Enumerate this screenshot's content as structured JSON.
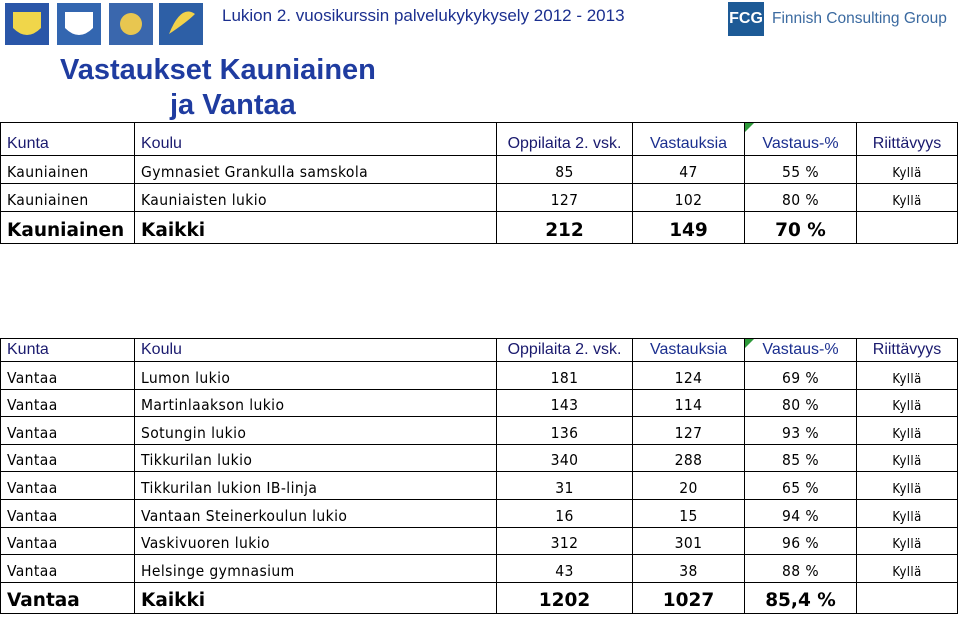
{
  "header": {
    "title": "Lukion 2. vuosikurssin palvelukykykysely 2012 - 2013",
    "logo_text": "FCG",
    "company": "Finnish Consulting Group"
  },
  "heading": [
    "Vastaukset Kauniainen",
    "ja Vantaa"
  ],
  "tables": [
    {
      "columns": [
        "Kunta",
        "Koulu",
        "Oppilaita 2. vsk.",
        "Vastauksia",
        "Vastaus-%",
        "Riittävyys"
      ],
      "rows": [
        [
          "Kauniainen",
          "Gymnasiet Grankulla samskola",
          "85",
          "47",
          "55 %",
          "Kyllä"
        ],
        [
          "Kauniainen",
          "Kauniaisten lukio",
          "127",
          "102",
          "80 %",
          "Kyllä"
        ]
      ],
      "total": [
        "Kauniainen",
        "Kaikki",
        "212",
        "149",
        "70 %"
      ]
    },
    {
      "columns": [
        "Kunta",
        "Koulu",
        "Oppilaita 2. vsk.",
        "Vastauksia",
        "Vastaus-%",
        "Riittävyys"
      ],
      "rows": [
        [
          "Vantaa",
          "Lumon lukio",
          "181",
          "124",
          "69 %",
          "Kyllä"
        ],
        [
          "Vantaa",
          "Martinlaakson lukio",
          "143",
          "114",
          "80 %",
          "Kyllä"
        ],
        [
          "Vantaa",
          "Sotungin lukio",
          "136",
          "127",
          "93 %",
          "Kyllä"
        ],
        [
          "Vantaa",
          "Tikkurilan lukio",
          "340",
          "288",
          "85 %",
          "Kyllä"
        ],
        [
          "Vantaa",
          "Tikkurilan lukion IB-linja",
          "31",
          "20",
          "65 %",
          "Kyllä"
        ],
        [
          "Vantaa",
          "Vantaan Steinerkoulun lukio",
          "16",
          "15",
          "94 %",
          "Kyllä"
        ],
        [
          "Vantaa",
          "Vaskivuoren lukio",
          "312",
          "301",
          "96 %",
          "Kyllä"
        ],
        [
          "Vantaa",
          "Helsinge gymnasium",
          "43",
          "38",
          "88 %",
          "Kyllä"
        ]
      ],
      "total": [
        "Vantaa",
        "Kaikki",
        "1202",
        "1027",
        "85,4 %"
      ]
    }
  ]
}
